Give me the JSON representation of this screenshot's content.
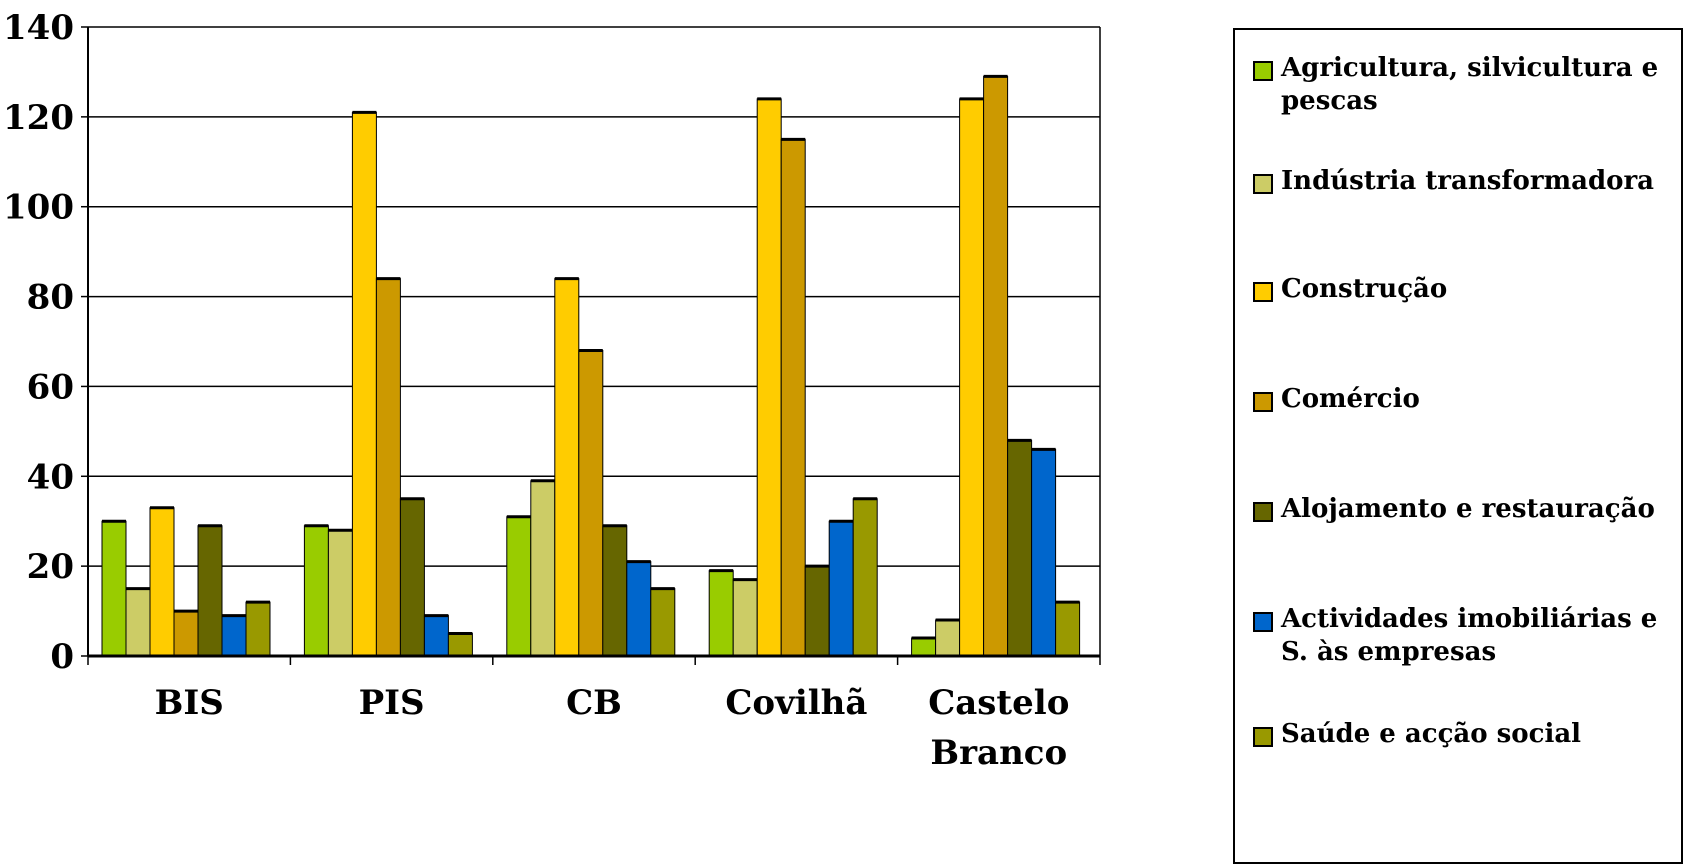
{
  "chart_data": {
    "type": "bar",
    "categories": [
      "BIS",
      "PIS",
      "CB",
      "Covilhã",
      "Castelo Branco"
    ],
    "series": [
      {
        "name": "Agricultura, silvicultura e pescas",
        "color": "#99CC00",
        "values": [
          30,
          29,
          31,
          19,
          4
        ]
      },
      {
        "name": "Indústria transformadora",
        "color": "#CCCC66",
        "values": [
          15,
          28,
          39,
          17,
          8
        ]
      },
      {
        "name": "Construção",
        "color": "#FFCC00",
        "values": [
          33,
          121,
          84,
          124,
          124
        ]
      },
      {
        "name": "Comércio",
        "color": "#CC9900",
        "values": [
          10,
          84,
          68,
          115,
          129
        ]
      },
      {
        "name": "Alojamento e restauração",
        "color": "#666600",
        "values": [
          29,
          35,
          29,
          20,
          48
        ]
      },
      {
        "name": "Actividades imobiliárias e S. às empresas",
        "color": "#0066CC",
        "values": [
          9,
          9,
          21,
          30,
          46
        ]
      },
      {
        "name": "Saúde e acção social",
        "color": "#999900",
        "values": [
          12,
          5,
          15,
          35,
          12
        ]
      }
    ],
    "ylim": [
      0,
      140
    ],
    "yticks": [
      0,
      20,
      40,
      60,
      80,
      100,
      120,
      140
    ],
    "grid": true,
    "legend_position": "right",
    "title": "",
    "xlabel": "",
    "ylabel": ""
  }
}
